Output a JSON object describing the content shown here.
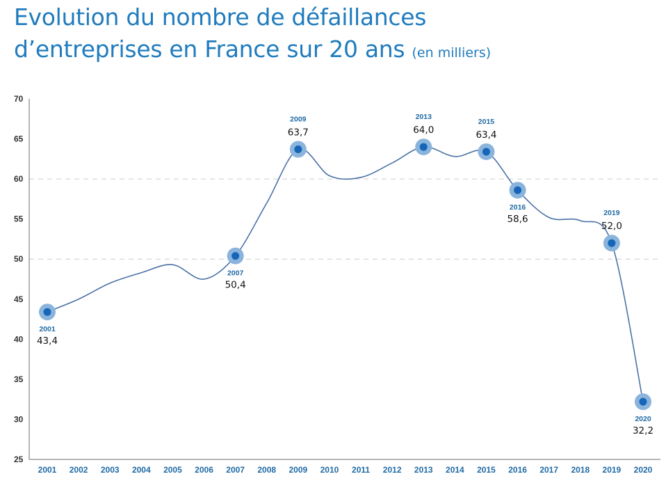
{
  "title": {
    "line1": "Evolution du nombre de défaillances",
    "line2": "d’entreprises en France sur 20 ans",
    "unit": "(en milliers)"
  },
  "colors": {
    "title": "#1f7bbd",
    "line": "#4a72a6",
    "marker_outer": "#8ab4dc",
    "marker_inner": "#1565b8",
    "axis": "#6e6e6e",
    "grid": "#cccccc",
    "year_label": "#1f6aa5"
  },
  "chart_data": {
    "type": "line",
    "title": "Evolution du nombre de défaillances d’entreprises en France sur 20 ans (en milliers)",
    "xlabel": "",
    "ylabel": "",
    "ylim": [
      25,
      70
    ],
    "yticks": [
      25,
      30,
      35,
      40,
      45,
      50,
      55,
      60,
      65,
      70
    ],
    "gridlines_at": [
      50,
      60
    ],
    "categories": [
      "2001",
      "2002",
      "2003",
      "2004",
      "2005",
      "2006",
      "2007",
      "2008",
      "2009",
      "2010",
      "2011",
      "2012",
      "2013",
      "2014",
      "2015",
      "2016",
      "2017",
      "2018",
      "2019",
      "2020"
    ],
    "series": [
      {
        "values": [
          43.4,
          45.0,
          47.0,
          48.3,
          49.3,
          47.5,
          50.4,
          57.0,
          63.7,
          60.4,
          60.2,
          62.0,
          64.0,
          62.8,
          63.4,
          58.6,
          55.2,
          54.8,
          52.0,
          32.2
        ]
      }
    ],
    "annotations": [
      {
        "year": "2001",
        "value_label": "43,4",
        "position": "below"
      },
      {
        "year": "2007",
        "value_label": "50,4",
        "position": "below"
      },
      {
        "year": "2009",
        "value_label": "63,7",
        "position": "above"
      },
      {
        "year": "2013",
        "value_label": "64,0",
        "position": "above"
      },
      {
        "year": "2015",
        "value_label": "63,4",
        "position": "above"
      },
      {
        "year": "2016",
        "value_label": "58,6",
        "position": "below"
      },
      {
        "year": "2019",
        "value_label": "52,0",
        "position": "above"
      },
      {
        "year": "2020",
        "value_label": "32,2",
        "position": "below"
      }
    ]
  }
}
